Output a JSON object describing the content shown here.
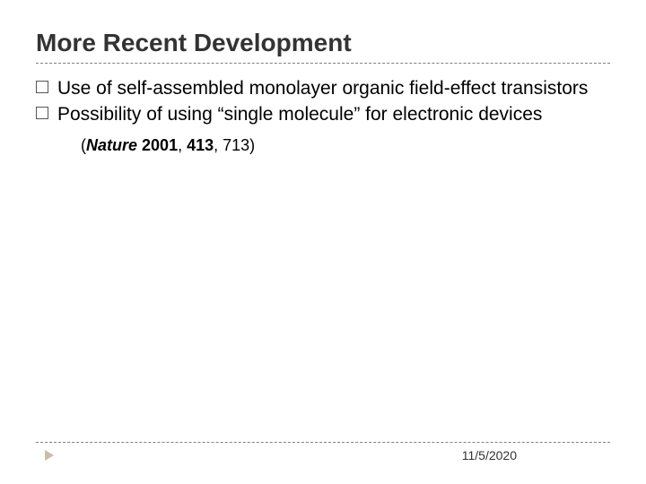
{
  "title": "More Recent Development",
  "bullets": [
    "Use of self-assembled monolayer organic field-effect transistors",
    "Possibility of using “single molecule” for electronic devices"
  ],
  "citation": {
    "open": "(",
    "journal": "Nature",
    "year": "2001",
    "sep1": ", ",
    "vol": "413",
    "sep2": ", 713)",
    "close": ""
  },
  "footer": {
    "date": "11/5/2020"
  },
  "colors": {
    "title": "#333333",
    "text": "#000000",
    "divider": "#808080",
    "arrow": "#c8bfa8",
    "background": "#ffffff"
  },
  "typography": {
    "title_fontsize": 28,
    "title_weight": "bold",
    "bullet_fontsize": 21,
    "citation_fontsize": 18,
    "footer_fontsize": 14,
    "font_family": "Arial"
  }
}
